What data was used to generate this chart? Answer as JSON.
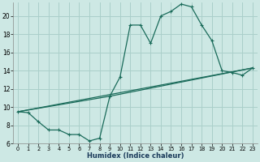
{
  "xlabel": "Humidex (Indice chaleur)",
  "bg_color": "#cde8e4",
  "grid_color": "#aacfca",
  "line_color": "#1a6b5a",
  "xlim": [
    -0.5,
    23.5
  ],
  "ylim": [
    6,
    21.5
  ],
  "xticks": [
    0,
    1,
    2,
    3,
    4,
    5,
    6,
    7,
    8,
    9,
    10,
    11,
    12,
    13,
    14,
    15,
    16,
    17,
    18,
    19,
    20,
    21,
    22,
    23
  ],
  "yticks": [
    6,
    8,
    10,
    12,
    14,
    16,
    18,
    20
  ],
  "line1_x": [
    0,
    1,
    2,
    3,
    4,
    5,
    6,
    7,
    8,
    9,
    10,
    11,
    12,
    13,
    14,
    15,
    16,
    17,
    18,
    19,
    20,
    21,
    22,
    23
  ],
  "line1_y": [
    9.5,
    9.4,
    8.4,
    7.5,
    7.5,
    7.0,
    7.0,
    6.3,
    6.6,
    11.2,
    13.3,
    19.0,
    19.0,
    17.0,
    20.0,
    20.5,
    21.3,
    21.0,
    19.0,
    17.3,
    14.0,
    13.8,
    13.5,
    14.3
  ],
  "line2_x": [
    0,
    23
  ],
  "line2_y": [
    9.5,
    14.3
  ],
  "line3_x": [
    0,
    9,
    23
  ],
  "line3_y": [
    9.5,
    11.2,
    14.3
  ]
}
